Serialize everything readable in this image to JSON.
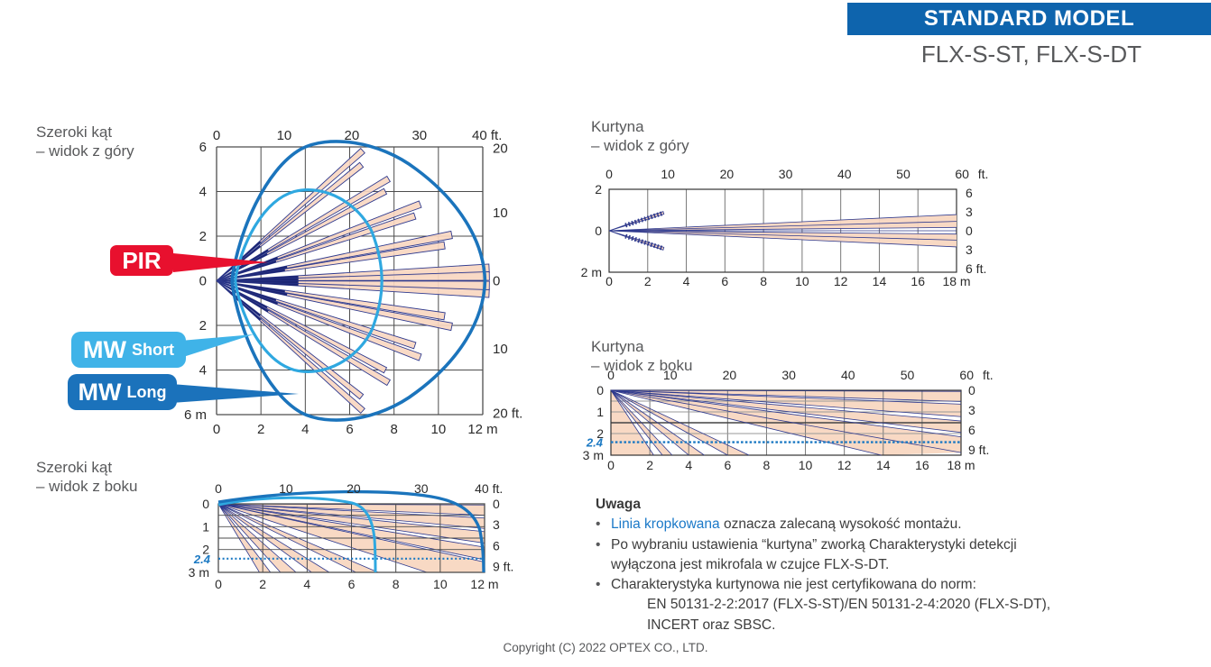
{
  "header": {
    "banner": "STANDARD MODEL",
    "models": "FLX-S-ST, FLX-S-DT"
  },
  "callouts": {
    "pir": "PIR",
    "mw": "MW",
    "short": "Short",
    "long": "Long"
  },
  "colors": {
    "banner": "#0e64ad",
    "pir_red": "#e8102e",
    "mw_short": "#3fb3e8",
    "mw_long": "#1b72bb",
    "mw_short_curve": "#2fa8e0",
    "mw_long_curve": "#1b74bc",
    "beam_navy": "#2f3a8e",
    "beam_core": "#1c2674",
    "beam_pink": "#f8d7c1",
    "grid": "#4d4d4d",
    "grid_light": "#777777",
    "border": "#333333",
    "mount_blue": "#1b79c3",
    "axis_text": "#2b2b2b",
    "text_gray": "#58595b"
  },
  "charts": {
    "wide_top": {
      "title_l1": "Szeroki kąt",
      "title_l2": "– widok z góry",
      "axes": {
        "top": [
          [
            "0",
            0
          ],
          [
            "10",
            10
          ],
          [
            "20",
            20
          ],
          [
            "30",
            30
          ],
          [
            "40 ft.",
            40
          ]
        ],
        "bottom": [
          [
            "0",
            0
          ],
          [
            "2",
            2
          ],
          [
            "4",
            4
          ],
          [
            "6",
            6
          ],
          [
            "8",
            8
          ],
          [
            "10",
            10
          ],
          [
            "12 m",
            12
          ]
        ],
        "left": [
          [
            "6",
            6
          ],
          [
            "4",
            4
          ],
          [
            "2",
            2
          ],
          [
            "0",
            0
          ],
          [
            "2",
            -2
          ],
          [
            "4",
            -4
          ],
          [
            "6 m",
            -6
          ]
        ],
        "right": [
          [
            "20",
            19.5
          ],
          [
            "10",
            10
          ],
          [
            "0",
            0
          ],
          [
            "10",
            -10
          ],
          [
            "20 ft.",
            -19.5
          ]
        ]
      },
      "beams": [
        [
          41.5,
          8.8
        ],
        [
          38.5,
          8.35
        ],
        [
          30.5,
          9.0
        ],
        [
          27.8,
          8.6
        ],
        [
          20.5,
          9.8
        ],
        [
          18,
          9.4
        ],
        [
          11,
          10.8
        ],
        [
          8.8,
          10.4
        ],
        [
          2.6,
          12.3
        ],
        [
          1.0,
          12.3
        ]
      ],
      "mirrored": true,
      "mw_short_outline": [
        [
          0.85,
          0.1
        ],
        [
          1.15,
          1.7
        ],
        [
          2.1,
          3.6
        ],
        [
          3.5,
          4.0
        ],
        [
          4.9,
          4.35
        ],
        [
          6.4,
          3.45
        ],
        [
          7.0,
          2.2
        ],
        [
          7.35,
          1.3
        ],
        [
          7.45,
          0.6
        ],
        [
          7.45,
          0
        ]
      ],
      "mw_long_outline": [
        [
          0.7,
          0.1
        ],
        [
          1.0,
          2.2
        ],
        [
          2.2,
          5.0
        ],
        [
          3.8,
          5.9
        ],
        [
          5.0,
          6.55
        ],
        [
          7.3,
          6.3
        ],
        [
          9.0,
          5.0
        ],
        [
          10.9,
          3.6
        ],
        [
          12.05,
          1.8
        ],
        [
          12.1,
          0
        ]
      ]
    },
    "wide_side": {
      "title_l1": "Szeroki kąt",
      "title_l2": "– widok z boku",
      "mount_label": "2.4",
      "mount_height_m": 2.4,
      "axes": {
        "top": [
          [
            "0",
            0
          ],
          [
            "10",
            10
          ],
          [
            "20",
            20
          ],
          [
            "30",
            30
          ],
          [
            "40 ft.",
            40
          ]
        ],
        "bottom": [
          [
            "0",
            0
          ],
          [
            "2",
            2
          ],
          [
            "4",
            4
          ],
          [
            "6",
            6
          ],
          [
            "8",
            8
          ],
          [
            "10",
            10
          ],
          [
            "12 m",
            12
          ]
        ],
        "left": [
          [
            "0",
            0
          ],
          [
            "1",
            1
          ],
          [
            "2",
            2
          ],
          [
            "3 m",
            3
          ]
        ],
        "right": [
          [
            "0",
            0
          ],
          [
            "3",
            0.91
          ],
          [
            "6",
            1.83
          ],
          [
            "9 ft.",
            2.74
          ]
        ]
      },
      "pink_bottom": [
        [
          1.85,
          2.35
        ],
        [
          2.8,
          3.5
        ],
        [
          4.2,
          5.0
        ],
        [
          6.2,
          7.2
        ]
      ],
      "pink_corner": [
        9.4,
        2.55
      ],
      "pink_right": [
        [
          0.05,
          0.5
        ],
        [
          0.62,
          1.08
        ],
        [
          1.22,
          1.72
        ],
        [
          1.9,
          2.45
        ]
      ],
      "mw_short_end_m": 7.1,
      "mw_long_end_m": 11.95
    },
    "curtain_top": {
      "title_l1": "Kurtyna",
      "title_l2": "– widok z góry",
      "axes": {
        "top": [
          [
            "0",
            0
          ],
          [
            "10",
            10
          ],
          [
            "20",
            20
          ],
          [
            "30",
            30
          ],
          [
            "40",
            40
          ],
          [
            "50",
            50
          ],
          [
            "60",
            60
          ],
          [
            "ft.",
            63.6
          ]
        ],
        "bottom": [
          [
            "0",
            0
          ],
          [
            "2",
            2
          ],
          [
            "4",
            4
          ],
          [
            "6",
            6
          ],
          [
            "8",
            8
          ],
          [
            "10",
            10
          ],
          [
            "12",
            12
          ],
          [
            "14",
            14
          ],
          [
            "16",
            16
          ],
          [
            "18 m",
            18
          ]
        ],
        "left": [
          [
            "2",
            2
          ],
          [
            "0",
            0
          ],
          [
            "2 m",
            -2
          ]
        ],
        "right": [
          [
            "6",
            1.83
          ],
          [
            "3",
            0.91
          ],
          [
            "0",
            0
          ],
          [
            "3",
            -0.91
          ],
          [
            "6 ft.",
            -1.83
          ]
        ]
      },
      "fan": {
        "outer": 0.78,
        "inner": 0.16,
        "lines": [
          0.78,
          0.45,
          0.16,
          0,
          -0.16,
          -0.45,
          -0.78
        ],
        "reach_m": 18
      },
      "stubs": {
        "angle_deg": 17,
        "length_m": 2.95
      }
    },
    "curtain_side": {
      "title_l1": "Kurtyna",
      "title_l2": "– widok z boku",
      "mount_label": "2.4",
      "mount_height_m": 2.4,
      "axes": {
        "top": [
          [
            "0",
            0
          ],
          [
            "10",
            10
          ],
          [
            "20",
            20
          ],
          [
            "30",
            30
          ],
          [
            "40",
            40
          ],
          [
            "50",
            50
          ],
          [
            "60",
            60
          ],
          [
            "ft.",
            63.6
          ]
        ],
        "bottom": [
          [
            "0",
            0
          ],
          [
            "2",
            2
          ],
          [
            "4",
            4
          ],
          [
            "6",
            6
          ],
          [
            "8",
            8
          ],
          [
            "10",
            10
          ],
          [
            "12",
            12
          ],
          [
            "14",
            14
          ],
          [
            "16",
            16
          ],
          [
            "18 m",
            18
          ]
        ],
        "left": [
          [
            "0",
            0
          ],
          [
            "1",
            1
          ],
          [
            "2",
            2
          ],
          [
            "3 m",
            3
          ]
        ],
        "right": [
          [
            "0",
            0
          ],
          [
            "3",
            0.91
          ],
          [
            "6",
            1.83
          ],
          [
            "9 ft.",
            2.74
          ]
        ]
      },
      "white_bottom": [
        [
          2.2,
          2.65
        ],
        [
          3.15,
          4.0
        ],
        [
          4.8,
          6.0
        ]
      ],
      "white_big": [
        7.1,
        13.9
      ],
      "corner_line_right_m": 2.88,
      "white_right": [
        [
          0.52,
          0.64
        ],
        [
          1.22,
          1.42
        ],
        [
          1.95,
          2.15
        ]
      ],
      "lines_bottom": [
        2.2,
        2.65,
        3.15,
        4.0,
        4.8,
        6.0,
        7.1,
        13.9
      ],
      "lines_right": [
        2.88,
        2.15,
        1.95,
        1.42,
        1.22,
        0.64,
        0.52,
        0.05
      ]
    }
  },
  "note": {
    "title": "Uwaga",
    "bullet": "•",
    "b1_blue": "Linia kropkowana",
    "b1_rest": " oznacza zalecaną wysokość montażu.",
    "b2_l1": "Po wybraniu ustawienia “kurtyna” zworką Charakterystyki detekcji",
    "b2_l2": "wyłączona jest mikrofala w czujce FLX-S-DT.",
    "b3_l1": "Charakterystyka kurtynowa nie jest certyfikowana do norm:",
    "b3_l2": "EN 50131-2-2:2017 (FLX-S-ST)/EN 50131-2-4:2020 (FLX-S-DT),",
    "b3_l3": "INCERT oraz SBSC."
  },
  "copyright": "Copyright (C) 2022 OPTEX CO., LTD."
}
